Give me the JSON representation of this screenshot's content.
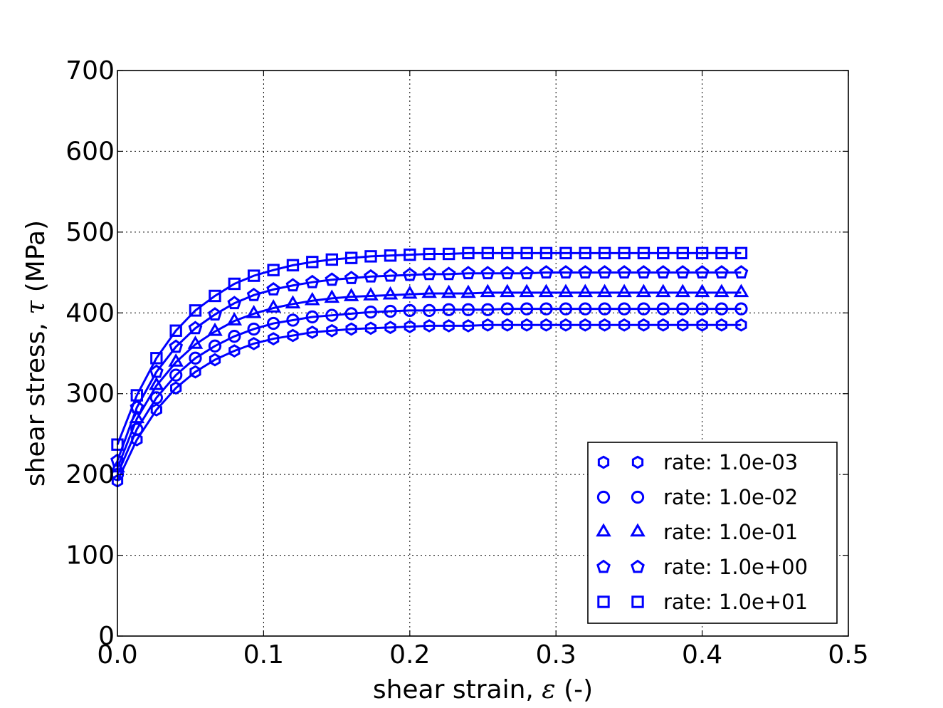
{
  "chart_data": {
    "type": "line",
    "xlabel_text": "shear strain, ",
    "xlabel_symbol": "ε",
    "xlabel_suffix": " (-)",
    "ylabel_text": "shear stress, ",
    "ylabel_symbol": "τ",
    "ylabel_suffix": " (MPa)",
    "xlim": [
      0.0,
      0.5
    ],
    "ylim": [
      0,
      700
    ],
    "xticks": [
      "0.0",
      "0.1",
      "0.2",
      "0.3",
      "0.4",
      "0.5"
    ],
    "yticks": [
      "0",
      "100",
      "200",
      "300",
      "400",
      "500",
      "600",
      "700"
    ],
    "grid": true,
    "legend_position": "lower-right",
    "color": "#0000ff",
    "x": [
      0.0,
      0.0133,
      0.0267,
      0.04,
      0.0533,
      0.0667,
      0.08,
      0.0933,
      0.1067,
      0.12,
      0.1333,
      0.1467,
      0.16,
      0.1733,
      0.1867,
      0.2,
      0.2133,
      0.2267,
      0.24,
      0.2533,
      0.2667,
      0.28,
      0.2933,
      0.3067,
      0.32,
      0.3333,
      0.3467,
      0.36,
      0.3733,
      0.3867,
      0.4,
      0.4133,
      0.4267
    ],
    "series": [
      {
        "name": "rate: 1.0e-03",
        "marker": "hexagon",
        "values": [
          192,
          243,
          280,
          307,
          327,
          342,
          353,
          362,
          368,
          372,
          376,
          378,
          380,
          381,
          382,
          383,
          384,
          384,
          384,
          385,
          385,
          385,
          385,
          385,
          385,
          385,
          385,
          385,
          385,
          385,
          385,
          385,
          385
        ]
      },
      {
        "name": "rate: 1.0e-02",
        "marker": "circle",
        "values": [
          200,
          256,
          295,
          323,
          344,
          359,
          371,
          380,
          387,
          391,
          395,
          397,
          399,
          401,
          402,
          403,
          403,
          404,
          404,
          404,
          405,
          405,
          405,
          405,
          405,
          405,
          405,
          405,
          405,
          405,
          405,
          405,
          405
        ]
      },
      {
        "name": "rate: 1.0e-01",
        "marker": "triangle",
        "values": [
          208,
          269,
          310,
          339,
          361,
          377,
          390,
          399,
          406,
          411,
          415,
          418,
          420,
          421,
          422,
          423,
          424,
          424,
          424,
          425,
          425,
          425,
          425,
          425,
          425,
          425,
          425,
          425,
          425,
          425,
          425,
          425,
          425
        ]
      },
      {
        "name": "rate: 1.0e+00",
        "marker": "pentagon",
        "values": [
          217,
          283,
          327,
          358,
          381,
          398,
          412,
          422,
          429,
          434,
          438,
          441,
          443,
          445,
          446,
          447,
          448,
          448,
          449,
          449,
          449,
          449,
          450,
          450,
          450,
          450,
          450,
          450,
          450,
          450,
          450,
          450,
          450
        ]
      },
      {
        "name": "rate: 1.0e+01",
        "marker": "square",
        "values": [
          237,
          298,
          344,
          378,
          403,
          421,
          436,
          446,
          453,
          459,
          463,
          466,
          468,
          470,
          471,
          472,
          473,
          473,
          474,
          474,
          474,
          474,
          474,
          474,
          474,
          474,
          474,
          474,
          474,
          474,
          474,
          474,
          474
        ]
      }
    ]
  }
}
